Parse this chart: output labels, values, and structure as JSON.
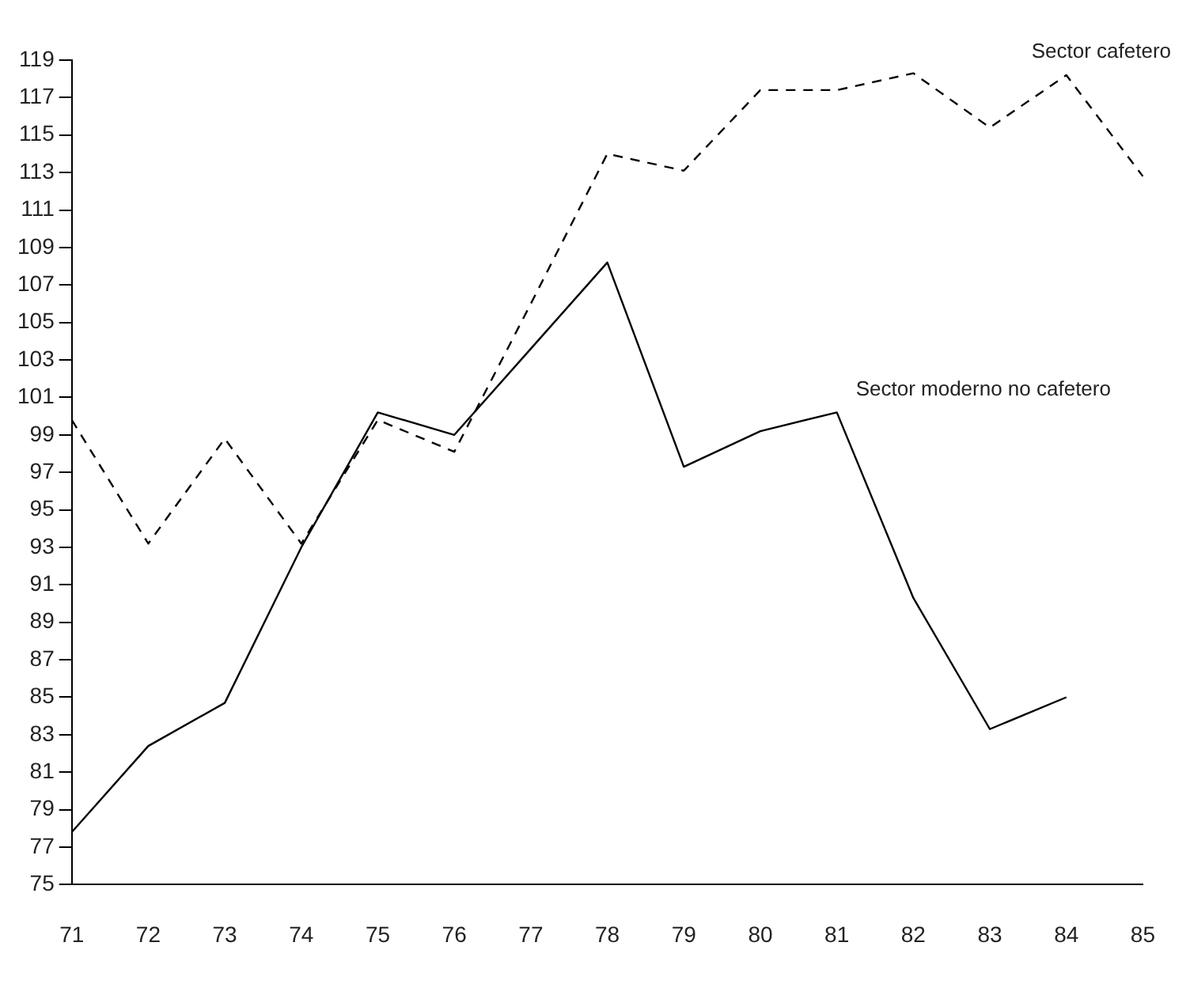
{
  "chart_data": {
    "type": "line",
    "categories": [
      "71",
      "72",
      "73",
      "74",
      "75",
      "76",
      "77",
      "78",
      "79",
      "80",
      "81",
      "82",
      "83",
      "84",
      "85"
    ],
    "series": [
      {
        "name": "Sector cafetero",
        "color": "#000000",
        "line_style": "dashed",
        "values": [
          99.8,
          93.2,
          98.8,
          93.2,
          99.8,
          98.1,
          106,
          114,
          113.1,
          117.4,
          117.4,
          118.3,
          115.4,
          118.2,
          112.8
        ]
      },
      {
        "name": "Sector moderno no cafetero",
        "color": "#000000",
        "line_style": "solid",
        "values": [
          77.8,
          82.4,
          84.7,
          93,
          100.2,
          99,
          103.6,
          108.2,
          97.3,
          99.2,
          100.2,
          90.3,
          83.3,
          85,
          null
        ]
      }
    ],
    "ylim": [
      75,
      119
    ],
    "yticks": [
      75,
      77,
      79,
      81,
      83,
      85,
      87,
      89,
      91,
      93,
      95,
      97,
      99,
      101,
      103,
      105,
      107,
      109,
      111,
      113,
      115,
      117,
      119
    ],
    "grid": false,
    "legend": false,
    "marker": "none"
  }
}
